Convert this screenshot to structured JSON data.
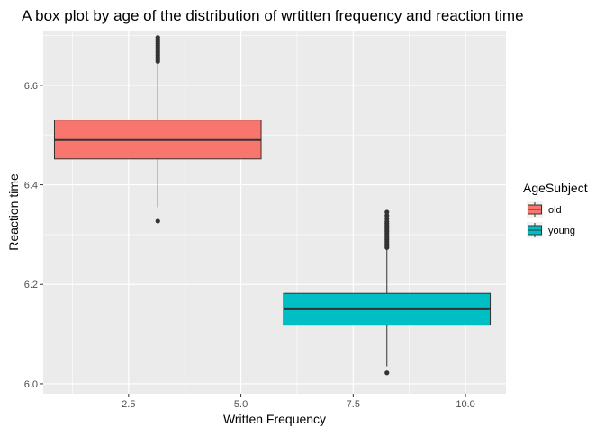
{
  "chart_data": {
    "type": "box",
    "title": "A box plot by age of the distribution of wrtitten frequency and reaction time",
    "xlabel": "Written Frequency",
    "ylabel": "Reaction time",
    "xlim": [
      0.6,
      10.9
    ],
    "ylim": [
      5.98,
      6.71
    ],
    "x_ticks": [
      2.5,
      5.0,
      7.5,
      10.0
    ],
    "x_tick_labels": [
      "2.5",
      "5.0",
      "7.5",
      "10.0"
    ],
    "y_ticks": [
      6.0,
      6.2,
      6.4,
      6.6
    ],
    "y_tick_labels": [
      "6.0",
      "6.2",
      "6.4",
      "6.6"
    ],
    "grid": true,
    "legend": {
      "title": "AgeSubject",
      "position": "right",
      "entries": [
        {
          "label": "old",
          "color": "#F8766D"
        },
        {
          "label": "young",
          "color": "#00BFC4"
        }
      ]
    },
    "series": [
      {
        "name": "old",
        "color": "#F8766D",
        "x_center": 3.15,
        "x_range": [
          0.85,
          5.45
        ],
        "lower_whisker": 6.355,
        "q1": 6.452,
        "median": 6.49,
        "q3": 6.53,
        "upper_whisker": 6.645,
        "outliers": [
          6.327,
          6.648,
          6.652,
          6.656,
          6.66,
          6.664,
          6.668,
          6.672,
          6.676,
          6.68,
          6.684,
          6.688,
          6.692,
          6.696
        ]
      },
      {
        "name": "young",
        "color": "#00BFC4",
        "x_center": 8.25,
        "x_range": [
          5.95,
          10.55
        ],
        "lower_whisker": 6.035,
        "q1": 6.118,
        "median": 6.15,
        "q3": 6.182,
        "upper_whisker": 6.27,
        "outliers": [
          6.022,
          6.274,
          6.278,
          6.282,
          6.286,
          6.29,
          6.294,
          6.298,
          6.302,
          6.306,
          6.31,
          6.314,
          6.318,
          6.322,
          6.326,
          6.332,
          6.338,
          6.345
        ]
      }
    ]
  }
}
